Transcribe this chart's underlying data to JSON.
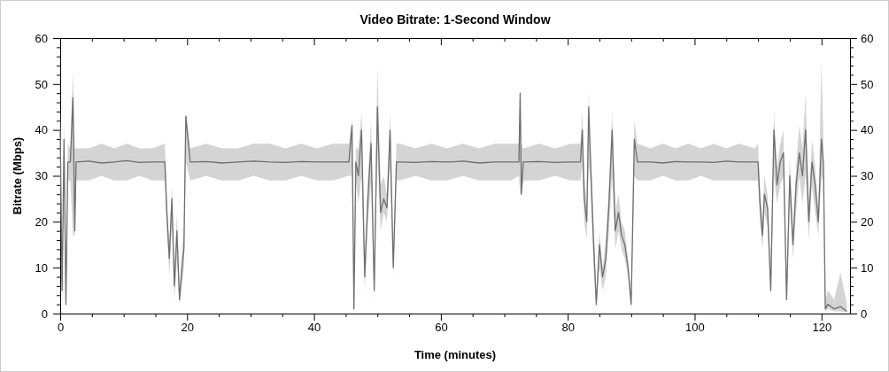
{
  "chart_data": {
    "type": "line",
    "title": "Video Bitrate: 1-Second Window",
    "xlabel": "Time (minutes)",
    "ylabel": "Bitrate (Mbps)",
    "xlim": [
      0,
      124.5
    ],
    "xticks": [
      0,
      {
        "value": 5,
        "label": null
      },
      {
        "value": 10,
        "label": null
      },
      {
        "value": 15,
        "label": null
      },
      20,
      {
        "value": 25,
        "label": null
      },
      {
        "value": 30,
        "label": null
      },
      {
        "value": 35,
        "label": null
      },
      40,
      {
        "value": 45,
        "label": null
      },
      {
        "value": 50,
        "label": null
      },
      {
        "value": 55,
        "label": null
      },
      60,
      {
        "value": 65,
        "label": null
      },
      {
        "value": 70,
        "label": null
      },
      {
        "value": 75,
        "label": null
      },
      80,
      {
        "value": 85,
        "label": null
      },
      {
        "value": 90,
        "label": null
      },
      {
        "value": 95,
        "label": null
      },
      100,
      {
        "value": 105,
        "label": null
      },
      {
        "value": 110,
        "label": null
      },
      {
        "value": 115,
        "label": null
      },
      120
    ],
    "ylim": [
      0,
      60
    ],
    "yticks": [
      0,
      {
        "value": 2,
        "label": null
      },
      {
        "value": 4,
        "label": null
      },
      {
        "value": 6,
        "label": null
      },
      {
        "value": 8,
        "label": null
      },
      10,
      {
        "value": 12,
        "label": null
      },
      {
        "value": 14,
        "label": null
      },
      {
        "value": 16,
        "label": null
      },
      {
        "value": 18,
        "label": null
      },
      20,
      {
        "value": 22,
        "label": null
      },
      {
        "value": 24,
        "label": null
      },
      {
        "value": 26,
        "label": null
      },
      {
        "value": 28,
        "label": null
      },
      30,
      {
        "value": 32,
        "label": null
      },
      {
        "value": 34,
        "label": null
      },
      {
        "value": 36,
        "label": null
      },
      {
        "value": 38,
        "label": null
      },
      40,
      {
        "value": 42,
        "label": null
      },
      {
        "value": 44,
        "label": null
      },
      {
        "value": 46,
        "label": null
      },
      {
        "value": 48,
        "label": null
      },
      50,
      {
        "value": 52,
        "label": null
      },
      {
        "value": 54,
        "label": null
      },
      {
        "value": 56,
        "label": null
      },
      {
        "value": 58,
        "label": null
      },
      60
    ],
    "y2lim": [
      0,
      60
    ],
    "y2ticks": [
      0,
      {
        "value": 2,
        "label": null
      },
      {
        "value": 4,
        "label": null
      },
      {
        "value": 6,
        "label": null
      },
      {
        "value": 8,
        "label": null
      },
      10,
      {
        "value": 12,
        "label": null
      },
      {
        "value": 14,
        "label": null
      },
      {
        "value": 16,
        "label": null
      },
      {
        "value": 18,
        "label": null
      },
      20,
      {
        "value": 22,
        "label": null
      },
      {
        "value": 24,
        "label": null
      },
      {
        "value": 26,
        "label": null
      },
      {
        "value": 28,
        "label": null
      },
      30,
      {
        "value": 32,
        "label": null
      },
      {
        "value": 34,
        "label": null
      },
      {
        "value": 36,
        "label": null
      },
      {
        "value": 38,
        "label": null
      },
      40,
      {
        "value": 42,
        "label": null
      },
      {
        "value": 44,
        "label": null
      },
      {
        "value": 46,
        "label": null
      },
      {
        "value": 48,
        "label": null
      },
      50,
      {
        "value": 52,
        "label": null
      },
      {
        "value": 54,
        "label": null
      },
      {
        "value": 56,
        "label": null
      },
      {
        "value": 58,
        "label": null
      },
      60
    ],
    "grid": false,
    "series": [
      {
        "color": "#6e6e6e",
        "x": [
          0,
          0.3,
          0.6,
          0.9,
          1.2,
          1.6,
          2,
          2.3,
          2.5,
          4.5,
          6.5,
          8.5,
          10.5,
          12.5,
          14.5,
          16.5,
          16.8,
          17.2,
          17.6,
          18,
          18.4,
          18.8,
          19.2,
          19.5,
          19.8,
          20.5,
          23,
          25.5,
          28,
          30.5,
          33,
          35.5,
          38,
          40.5,
          43,
          45.5,
          46,
          46.3,
          46.6,
          47,
          47.5,
          48,
          48.5,
          49,
          49.5,
          50,
          50.5,
          51,
          51.5,
          52,
          52.5,
          53,
          53.5,
          56,
          58.5,
          61,
          63.5,
          66,
          68.5,
          71,
          72.3,
          72.5,
          72.7,
          73,
          75.5,
          78,
          80.5,
          82,
          82.3,
          82.6,
          83,
          83.3,
          83.6,
          84,
          84.5,
          85,
          85.5,
          86,
          86.5,
          87,
          87.5,
          88,
          88.5,
          89,
          89.5,
          90,
          90.5,
          91,
          93,
          95,
          97,
          99,
          101,
          103,
          105,
          107,
          109.5,
          110,
          110.3,
          110.7,
          111,
          111.5,
          112,
          112.5,
          113,
          113.5,
          114,
          114.5,
          115,
          115.5,
          116,
          116.5,
          117,
          117.5,
          118,
          118.5,
          119,
          119.5,
          120,
          120.3,
          120.6,
          121,
          122,
          123,
          124
        ],
        "values": [
          40,
          5,
          38,
          2,
          33,
          33,
          47,
          18,
          33,
          33.2,
          32.8,
          33,
          33.3,
          32.9,
          33,
          33,
          22,
          12,
          25,
          6,
          18,
          3,
          10,
          14,
          43,
          33,
          33.1,
          32.8,
          33,
          33.2,
          33,
          32.9,
          33.1,
          33,
          33,
          33,
          41,
          1,
          33,
          30,
          40,
          8,
          25,
          37,
          5,
          45,
          22,
          25,
          23,
          40,
          10,
          33,
          33,
          32.9,
          33.1,
          33,
          33.2,
          32.8,
          33,
          33,
          33,
          48,
          26,
          33,
          33.1,
          32.9,
          33,
          33,
          40,
          25,
          20,
          45,
          33,
          18,
          2,
          15,
          8,
          12,
          24,
          40,
          18,
          22,
          17,
          15,
          10,
          2,
          38,
          33,
          33,
          32.8,
          33.1,
          33,
          33,
          32.9,
          33.2,
          33,
          33,
          33,
          24,
          17,
          26,
          23,
          5,
          40,
          28,
          33,
          35,
          3,
          30,
          15,
          28,
          35,
          30,
          40,
          20,
          33,
          28,
          20,
          38,
          33,
          1,
          2,
          1,
          1.5,
          0.5
        ],
        "lower": [
          35,
          1,
          30,
          1,
          29,
          29,
          17,
          17,
          29,
          29,
          30,
          29,
          29,
          30,
          29,
          29,
          18,
          8,
          20,
          3,
          12,
          2,
          6,
          10,
          33,
          29,
          30,
          29,
          29,
          30,
          29,
          29,
          30,
          29,
          29,
          30,
          30,
          1,
          29,
          24,
          30,
          5,
          20,
          28,
          3,
          36,
          18,
          22,
          20,
          32,
          8,
          29,
          29,
          30,
          29,
          29,
          30,
          29,
          29,
          29,
          30,
          26,
          26,
          29,
          29,
          30,
          29,
          29,
          32,
          20,
          16,
          33,
          28,
          12,
          1,
          10,
          5,
          8,
          18,
          30,
          14,
          18,
          14,
          12,
          8,
          1,
          30,
          29,
          29,
          30,
          29,
          29,
          30,
          29,
          29,
          29,
          29,
          29,
          20,
          14,
          22,
          19,
          4,
          30,
          24,
          28,
          30,
          2,
          24,
          12,
          22,
          30,
          24,
          30,
          16,
          28,
          22,
          17,
          30,
          29,
          0.5,
          1,
          0.5,
          0.5,
          0.2
        ],
        "upper": [
          45,
          8,
          42,
          4,
          37,
          36,
          53,
          36,
          36,
          36,
          37,
          36,
          37,
          36,
          36,
          37,
          26,
          15,
          28,
          9,
          22,
          5,
          14,
          18,
          44,
          36,
          37,
          36,
          36,
          37,
          37,
          36,
          37,
          36,
          37,
          37,
          42,
          6,
          36,
          36,
          44,
          12,
          30,
          42,
          8,
          54,
          28,
          30,
          26,
          44,
          12,
          37,
          37,
          36,
          37,
          36,
          37,
          36,
          37,
          37,
          37,
          49,
          37,
          36,
          37,
          36,
          37,
          37,
          44,
          30,
          24,
          48,
          37,
          22,
          4,
          18,
          10,
          16,
          28,
          44,
          22,
          26,
          20,
          18,
          12,
          4,
          42,
          37,
          36,
          37,
          36,
          37,
          36,
          37,
          36,
          37,
          36,
          37,
          28,
          20,
          30,
          26,
          8,
          44,
          32,
          37,
          40,
          5,
          34,
          18,
          32,
          41,
          36,
          48,
          24,
          38,
          32,
          23,
          55,
          38,
          3,
          5,
          3,
          9,
          2
        ]
      }
    ]
  }
}
